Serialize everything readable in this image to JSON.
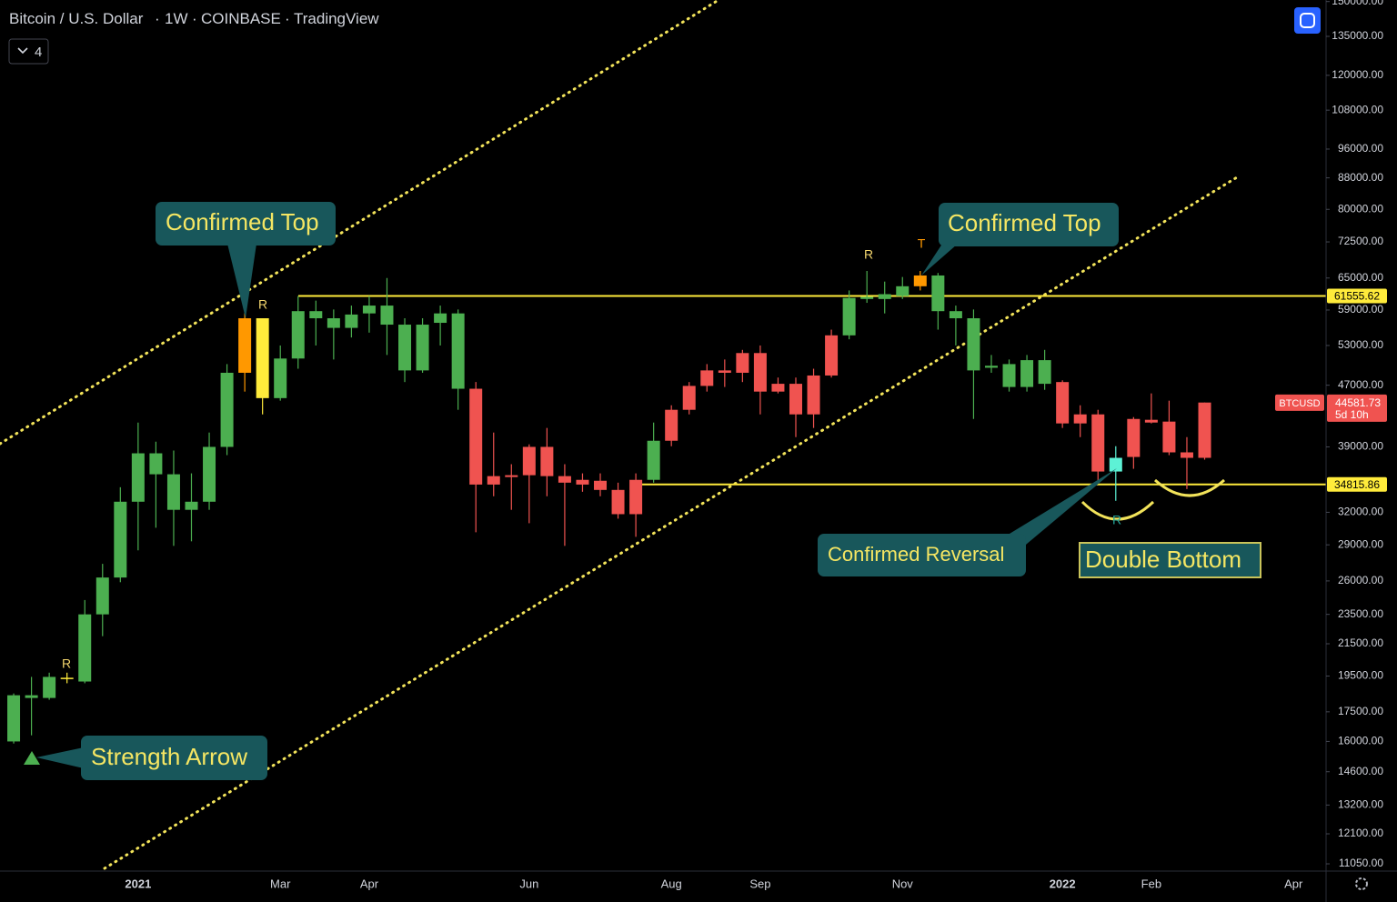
{
  "chart_data": {
    "type": "candlestick",
    "title": "Bitcoin / U.S. Dollar",
    "interval": "1W",
    "exchange": "COINBASE",
    "source": "TradingView",
    "indicator_button": 4,
    "log": true,
    "categories": [
      null,
      null,
      null,
      null,
      null,
      null,
      null,
      "2021",
      null,
      null,
      null,
      null,
      null,
      null,
      null,
      "Mar",
      null,
      null,
      null,
      null,
      "Apr",
      null,
      null,
      null,
      null,
      null,
      null,
      null,
      null,
      "Jun",
      null,
      null,
      null,
      null,
      null,
      null,
      null,
      "Aug",
      null,
      null,
      null,
      null,
      "Sep",
      null,
      null,
      null,
      null,
      null,
      null,
      null,
      "Nov",
      null,
      null,
      null,
      null,
      null,
      null,
      null,
      null,
      "2022",
      null,
      null,
      null,
      null,
      "Feb",
      null,
      null,
      null,
      null,
      null,
      null,
      null,
      "Apr",
      null
    ],
    "open": [
      16000,
      18250,
      18250,
      19350,
      19180,
      23500,
      26270,
      33040,
      35900,
      32240,
      32240,
      33040,
      39000,
      48800,
      57550,
      45200,
      50950,
      57550,
      55900,
      55900,
      58400,
      56450,
      49150,
      49150,
      56760,
      46500,
      46500,
      35700,
      35800,
      39000,
      39000,
      35700,
      35300,
      35200,
      34240,
      35300,
      35300,
      43630,
      46900,
      49150,
      49150,
      51800,
      51800,
      47200,
      47200,
      48400,
      54650,
      54650,
      61000,
      61000,
      61550,
      63400,
      58800,
      57550,
      49150,
      49550,
      46750,
      46750,
      47200,
      47450,
      43030,
      43030,
      36200,
      42440,
      42330,
      42100,
      38360,
      44600,
      null,
      null,
      null,
      null,
      null,
      null
    ],
    "high": [
      18500,
      19450,
      19700,
      19700,
      24540,
      27380,
      34520,
      41980,
      39620,
      38570,
      36000,
      40730,
      50100,
      60700,
      57550,
      53000,
      61550,
      60700,
      59100,
      59800,
      61550,
      65000,
      57550,
      57550,
      59800,
      59100,
      47450,
      40730,
      37010,
      39300,
      41300,
      37010,
      36000,
      36000,
      35000,
      36000,
      41980,
      44230,
      47450,
      50100,
      50800,
      52300,
      53000,
      48100,
      48100,
      49400,
      55600,
      62600,
      66400,
      64300,
      65200,
      66400,
      66000,
      59800,
      59100,
      51500,
      50800,
      51500,
      52300,
      47700,
      44230,
      43630,
      39080,
      42680,
      45850,
      44850,
      40170,
      44600,
      null,
      null,
      null,
      null,
      null,
      null
    ],
    "low": [
      15900,
      16300,
      18150,
      19080,
      19080,
      22000,
      25900,
      28520,
      30540,
      28910,
      29310,
      32240,
      38040,
      46100,
      43030,
      44850,
      49400,
      53000,
      50800,
      54300,
      55100,
      51500,
      47450,
      48800,
      53000,
      43630,
      30120,
      33590,
      32240,
      30960,
      33590,
      28910,
      34050,
      33590,
      31390,
      29710,
      35000,
      39080,
      43030,
      46100,
      46750,
      47450,
      43030,
      45850,
      40170,
      41300,
      48100,
      54000,
      60300,
      58400,
      61000,
      62600,
      55600,
      53000,
      42440,
      48800,
      46100,
      46100,
      46350,
      41300,
      40170,
      35000,
      33130,
      36500,
      41870,
      38040,
      34330,
      37520,
      null,
      null,
      null,
      null,
      null,
      null
    ],
    "close": [
      18400,
      18400,
      19450,
      19400,
      23500,
      26270,
      33040,
      38250,
      38250,
      35900,
      33040,
      39000,
      48800,
      57550,
      45200,
      50950,
      58800,
      58800,
      57550,
      58200,
      59800,
      59800,
      56450,
      56450,
      58400,
      58400,
      34800,
      34800,
      35600,
      35800,
      35700,
      35000,
      34800,
      34240,
      31820,
      31820,
      39730,
      39730,
      43630,
      46900,
      48800,
      48800,
      46100,
      46100,
      43030,
      43030,
      48400,
      61200,
      61400,
      61900,
      63400,
      65500,
      65500,
      58800,
      57550,
      49850,
      50100,
      50700,
      50700,
      41870,
      41870,
      36200,
      37730,
      37830,
      41980,
      38360,
      37730,
      37730,
      null,
      null,
      null,
      null,
      null,
      null
    ],
    "candle_colors": [
      "#4caf50",
      "#4caf50",
      "#4caf50",
      "#ffeb3b",
      "#4caf50",
      "#4caf50",
      "#4caf50",
      "#4caf50",
      "#4caf50",
      "#4caf50",
      "#4caf50",
      "#4caf50",
      "#4caf50",
      "#ff9800",
      "#ffeb3b",
      "#4caf50",
      "#4caf50",
      "#4caf50",
      "#4caf50",
      "#4caf50",
      "#4caf50",
      "#4caf50",
      "#4caf50",
      "#4caf50",
      "#4caf50",
      "#4caf50",
      "#f05350",
      "#f05350",
      "#f05350",
      "#f05350",
      "#f05350",
      "#f05350",
      "#f05350",
      "#f05350",
      "#f05350",
      "#f05350",
      "#4caf50",
      "#f05350",
      "#f05350",
      "#f05350",
      "#f05350",
      "#f05350",
      "#f05350",
      "#f05350",
      "#f05350",
      "#f05350",
      "#f05350",
      "#4caf50",
      "#4caf50",
      "#4caf50",
      "#4caf50",
      "#ff9800",
      "#4caf50",
      "#4caf50",
      "#4caf50",
      "#4caf50",
      "#4caf50",
      "#4caf50",
      "#4caf50",
      "#f05350",
      "#f05350",
      "#f05350",
      "#5df2d6",
      "#f05350",
      "#f05350",
      "#f05350",
      "#f05350",
      "#f05350",
      null,
      null,
      null,
      null,
      null,
      null
    ],
    "ylim": [
      10840,
      150700
    ],
    "yticks": [
      {
        "value": 150000,
        "label": "150000.00"
      },
      {
        "value": 135000,
        "label": "135000.00"
      },
      {
        "value": 120000,
        "label": "120000.00"
      },
      {
        "value": 108000,
        "label": "108000.00"
      },
      {
        "value": 96000,
        "label": "96000.00"
      },
      {
        "value": 88000,
        "label": "88000.00"
      },
      {
        "value": 80000,
        "label": "80000.00"
      },
      {
        "value": 72500,
        "label": "72500.00"
      },
      {
        "value": 65000,
        "label": "65000.00"
      },
      {
        "value": 59000,
        "label": "59000.00"
      },
      {
        "value": 53000,
        "label": "53000.00"
      },
      {
        "value": 47000,
        "label": "47000.00"
      },
      {
        "value": 39000,
        "label": "39000.00"
      },
      {
        "value": 32000,
        "label": "32000.00"
      },
      {
        "value": 29000,
        "label": "29000.00"
      },
      {
        "value": 26000,
        "label": "26000.00"
      },
      {
        "value": 23500,
        "label": "23500.00"
      },
      {
        "value": 21500,
        "label": "21500.00"
      },
      {
        "value": 19500,
        "label": "19500.00"
      },
      {
        "value": 17500,
        "label": "17500.00"
      },
      {
        "value": 16000,
        "label": "16000.00"
      },
      {
        "value": 14600,
        "label": "14600.00"
      },
      {
        "value": 13200,
        "label": "13200.00"
      },
      {
        "value": 12100,
        "label": "12100.00"
      },
      {
        "value": 11050,
        "label": "11050.00"
      }
    ],
    "price_lines": [
      61555.62,
      34815.86
    ],
    "price_line_color": "#ffeb3b",
    "last_price": 44581.73,
    "last_price_symbol": "BTCUSD",
    "last_price_countdown": "5d 10h",
    "last_price_color": "#f05350",
    "annotations": [
      "Confirmed Top",
      "Confirmed Top",
      "Strength Arrow",
      "Confirmed Reversal",
      "Double Bottom"
    ],
    "markers": [
      "R",
      "R",
      "R",
      "T",
      "R"
    ]
  }
}
